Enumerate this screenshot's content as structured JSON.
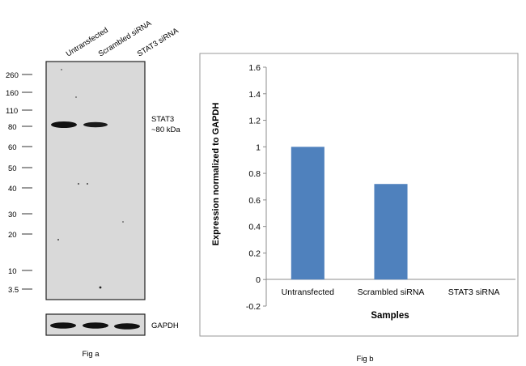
{
  "fig_a": {
    "lane_labels": [
      "Untransfected",
      "Scrambled siRNA",
      "STAT3  siRNA"
    ],
    "markers": [
      "260",
      "160",
      "110",
      "80",
      "60",
      "50",
      "40",
      "30",
      "20",
      "10",
      "3.5"
    ],
    "band_label_line1": "STAT3",
    "band_label_line2": "~80 kDa",
    "loading_label": "GAPDH",
    "caption": "Fig a"
  },
  "fig_b": {
    "caption": "Fig b"
  },
  "chart_data": {
    "type": "bar",
    "categories": [
      "Untransfected",
      "Scrambled siRNA",
      "STAT3 siRNA"
    ],
    "values": [
      1.0,
      0.72,
      0.0
    ],
    "ylabel": "Expression normalized to GAPDH",
    "xlabel": "Samples",
    "ylim": [
      -0.2,
      1.6
    ],
    "yticks": [
      "-0.2",
      "0",
      "0.2",
      "0.4",
      "0.6",
      "0.8",
      "1",
      "1.2",
      "1.4",
      "1.6"
    ],
    "bar_color": "#4f81bd",
    "grid": false
  }
}
